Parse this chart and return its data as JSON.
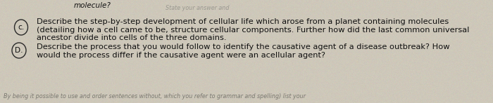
{
  "background_color": "#cec8ba",
  "top_text": "molecule?",
  "top_faded_text": "State your answer and",
  "circle_c_label": "c.",
  "circle_d_label": "D.",
  "text_c_line1": "Describe the step-by-step development of cellular life which arose from a planet containing molecules",
  "text_c_line2": "(detailing how a cell came to be, structure cellular components. Further how did the last common universal",
  "text_c_line3": "ancestor divide into cells of the three domains.",
  "text_d_line1": "Describe the process that you would follow to identify the causative agent of a disease outbreak? How",
  "text_d_line2": "would the process differ if the causative agent were an acellular agent?",
  "bottom_faded_text": "By being it possible to use and order sentences without, which you refer to grammar and spelling) list your",
  "font_size_main": 8.2,
  "font_size_top": 7.5,
  "font_size_faded": 5.8,
  "text_color": "#111111",
  "faded_color": "#7a7870",
  "circle_color": "#2a2a2a",
  "circle_linewidth": 1.0,
  "top_italic_color": "#9a9890"
}
